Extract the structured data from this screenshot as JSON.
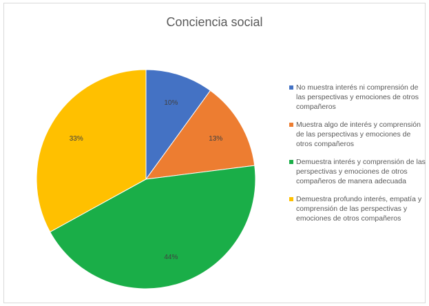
{
  "chart_data": {
    "type": "pie",
    "title": "Conciencia social",
    "start_angle_deg": 0,
    "direction": "clockwise",
    "legend_position": "right",
    "slices": [
      {
        "label": "No muestra interés ni comprensión de las perspectivas y emociones de otros compañeros",
        "value": 10,
        "display": "10%",
        "color": "#4472C4"
      },
      {
        "label": "Muestra algo de interés y comprensión de las perspectivas y emociones de otros compañeros",
        "value": 13,
        "display": "13%",
        "color": "#ED7D31"
      },
      {
        "label": "Demuestra interés y comprensión de las perspectivas y emociones de otros compañeros de manera adecuada",
        "value": 44,
        "display": "44%",
        "color": "#1AAE48"
      },
      {
        "label": "Demuestra profundo interés, empatía y comprensión de las perspectivas y emociones de otros compañeros",
        "value": 33,
        "display": "33%",
        "color": "#FFC000"
      }
    ]
  }
}
